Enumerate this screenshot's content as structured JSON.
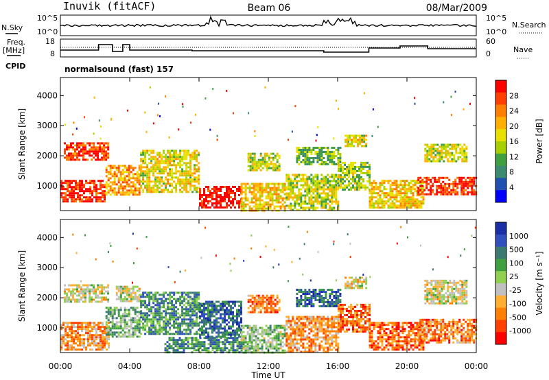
{
  "header": {
    "station": "Inuvik (fitACF)",
    "beam": "Beam 06",
    "date": "08/Mar/2009"
  },
  "summary_panels": {
    "nsky_label": "N.Sky",
    "nsky_ticks_left": [
      "10^5",
      "10^0"
    ],
    "nsearch_label": "N.Search",
    "nsearch_ticks_right": [
      "10^5",
      "10^0"
    ],
    "freq_label": "Freq.",
    "freq_unit": "[MHz]",
    "freq_ticks": [
      "18",
      "8"
    ],
    "nave_label": "Nave",
    "nave_ticks": [
      "60",
      "0"
    ],
    "cpid_label": "CPID",
    "cpid_text": "normalsound (fast) 157"
  },
  "chart_data": [
    {
      "type": "heatmap",
      "name_hint": "power-panel",
      "ylabel": "Slant Range [km]",
      "y_ticks": [
        1000,
        2000,
        3000,
        4000
      ],
      "ylim": [
        180,
        4600
      ],
      "xlim_hours": [
        0,
        24
      ],
      "colorbar": {
        "label": "Power [dB]",
        "ticks": [
          "28",
          "24",
          "20",
          "16",
          "12",
          "8",
          "4"
        ],
        "colors": [
          "#ff0000",
          "#ff4000",
          "#ff8000",
          "#ffb000",
          "#e8e000",
          "#a8d000",
          "#40a040",
          "#3c8a70",
          "#2050b0",
          "#0000ff"
        ]
      },
      "regions": [
        {
          "t0": 0.0,
          "t1": 2.6,
          "r0": 500,
          "r1": 1200,
          "level": 0.92
        },
        {
          "t0": 0.2,
          "t1": 2.8,
          "r0": 1900,
          "r1": 2450,
          "level": 0.85
        },
        {
          "t0": 2.6,
          "t1": 4.6,
          "r0": 700,
          "r1": 1700,
          "level": 0.7
        },
        {
          "t0": 4.6,
          "t1": 8.0,
          "r0": 800,
          "r1": 2200,
          "level": 0.55
        },
        {
          "t0": 8.0,
          "t1": 10.4,
          "r0": 250,
          "r1": 1000,
          "level": 0.95
        },
        {
          "t0": 10.4,
          "t1": 13.0,
          "r0": 200,
          "r1": 1100,
          "level": 0.6
        },
        {
          "t0": 10.8,
          "t1": 12.6,
          "r0": 1500,
          "r1": 2100,
          "level": 0.5
        },
        {
          "t0": 13.0,
          "t1": 16.0,
          "r0": 200,
          "r1": 1400,
          "level": 0.5
        },
        {
          "t0": 13.6,
          "t1": 16.2,
          "r0": 1700,
          "r1": 2300,
          "level": 0.4
        },
        {
          "t0": 16.0,
          "t1": 17.8,
          "r0": 900,
          "r1": 1800,
          "level": 0.45
        },
        {
          "t0": 16.4,
          "t1": 17.6,
          "r0": 2300,
          "r1": 2700,
          "level": 0.55
        },
        {
          "t0": 17.8,
          "t1": 21.0,
          "r0": 250,
          "r1": 1200,
          "level": 0.6
        },
        {
          "t0": 20.6,
          "t1": 24.0,
          "r0": 700,
          "r1": 1300,
          "level": 0.9
        },
        {
          "t0": 21.0,
          "t1": 23.4,
          "r0": 1800,
          "r1": 2400,
          "level": 0.5
        }
      ]
    },
    {
      "type": "heatmap",
      "name_hint": "velocity-panel",
      "ylabel": "Slant Range [km]",
      "y_ticks": [
        1000,
        2000,
        3000,
        4000
      ],
      "ylim": [
        180,
        4600
      ],
      "xlim_hours": [
        0,
        24
      ],
      "colorbar": {
        "label": "Velocity [m s⁻¹]",
        "ticks": [
          "1000",
          "500",
          "100",
          "25",
          "-25",
          "-100",
          "-500",
          "-1000"
        ],
        "colors": [
          "#1a2ea8",
          "#3050c0",
          "#3a7a70",
          "#40a040",
          "#90d050",
          "#c0c0c0",
          "#ffb030",
          "#ff8000",
          "#ff4000",
          "#ff0000"
        ]
      },
      "regions": [
        {
          "t0": 0.0,
          "t1": 2.8,
          "r0": 300,
          "r1": 1200,
          "level": 0.3
        },
        {
          "t0": 0.2,
          "t1": 2.8,
          "r0": 1900,
          "r1": 2450,
          "level": 0.45
        },
        {
          "t0": 2.6,
          "t1": 4.6,
          "r0": 700,
          "r1": 1700,
          "level": 0.6
        },
        {
          "t0": 3.2,
          "t1": 4.6,
          "r0": 1900,
          "r1": 2400,
          "level": 0.45
        },
        {
          "t0": 4.6,
          "t1": 8.0,
          "r0": 800,
          "r1": 2200,
          "level": 0.7
        },
        {
          "t0": 6.0,
          "t1": 11.0,
          "r0": 200,
          "r1": 700,
          "level": 0.7
        },
        {
          "t0": 8.0,
          "t1": 10.4,
          "r0": 700,
          "r1": 1900,
          "level": 0.8
        },
        {
          "t0": 10.4,
          "t1": 13.0,
          "r0": 200,
          "r1": 1100,
          "level": 0.55
        },
        {
          "t0": 10.8,
          "t1": 12.6,
          "r0": 1500,
          "r1": 2100,
          "level": 0.25
        },
        {
          "t0": 13.0,
          "t1": 16.0,
          "r0": 200,
          "r1": 1400,
          "level": 0.3
        },
        {
          "t0": 13.6,
          "t1": 16.2,
          "r0": 1700,
          "r1": 2300,
          "level": 0.8
        },
        {
          "t0": 16.0,
          "t1": 17.8,
          "r0": 900,
          "r1": 1800,
          "level": 0.2
        },
        {
          "t0": 16.4,
          "t1": 17.6,
          "r0": 2300,
          "r1": 2700,
          "level": 0.45
        },
        {
          "t0": 17.8,
          "t1": 21.0,
          "r0": 250,
          "r1": 1200,
          "level": 0.2
        },
        {
          "t0": 20.6,
          "t1": 24.0,
          "r0": 500,
          "r1": 1300,
          "level": 0.25
        },
        {
          "t0": 21.0,
          "t1": 23.4,
          "r0": 1800,
          "r1": 2600,
          "level": 0.45
        }
      ]
    }
  ],
  "time_axis": {
    "label": "Time UT",
    "ticks": [
      "00:00",
      "04:00",
      "08:00",
      "12:00",
      "16:00",
      "20:00",
      "00:00"
    ]
  }
}
